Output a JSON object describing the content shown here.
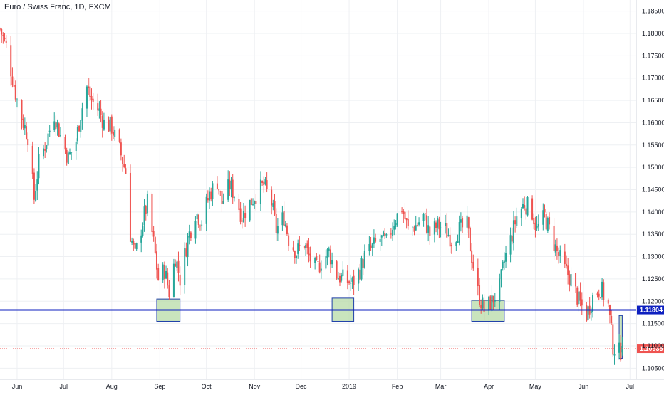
{
  "chart_data": {
    "type": "candlestick",
    "title": "Euro / Swiss Franc, 1D, FXCM",
    "x_labels": [
      "Jun",
      "Jul",
      "Aug",
      "Sep",
      "Oct",
      "Nov",
      "Dec",
      "2019",
      "Feb",
      "Mar",
      "Apr",
      "May",
      "Jun",
      "Jul"
    ],
    "y_ticks": [
      "1.18500",
      "1.18000",
      "1.17500",
      "1.17000",
      "1.16500",
      "1.16000",
      "1.15500",
      "1.15000",
      "1.14500",
      "1.14000",
      "1.13500",
      "1.13000",
      "1.12500",
      "1.12000",
      "1.11500",
      "1.11000",
      "1.10500"
    ],
    "ylim": [
      1.1025,
      1.1875
    ],
    "grid": true,
    "colors": {
      "up": "#26a69a",
      "down": "#ef5350",
      "support_line": "#0d1fbf",
      "current_price": "#ef5350",
      "zone_fill": "#b7dba7",
      "zone_border": "#1e3fa8",
      "grid": "#eef0f3"
    },
    "support_level": {
      "value": 1.11804,
      "label": "1.11804"
    },
    "current_price": {
      "value": 1.10935,
      "label": "1.10935"
    },
    "highlight_zones": [
      {
        "start": "2018-08-30",
        "end": "2018-09-14",
        "y_low": 1.1155,
        "y_high": 1.1205
      },
      {
        "start": "2018-12-21",
        "end": "2019-01-04",
        "y_low": 1.1155,
        "y_high": 1.1207
      },
      {
        "start": "2019-03-21",
        "end": "2019-04-11",
        "y_low": 1.1155,
        "y_high": 1.1202
      },
      {
        "start": "2019-06-24",
        "end": "2019-06-26",
        "y_low": 1.1072,
        "y_high": 1.1168
      }
    ],
    "closes": [
      [
        "2018-05-21",
        1.181
      ],
      [
        "2018-05-25",
        1.177
      ],
      [
        "2018-06-01",
        1.165
      ],
      [
        "2018-06-05",
        1.16
      ],
      [
        "2018-06-08",
        1.157
      ],
      [
        "2018-06-12",
        1.143
      ],
      [
        "2018-06-15",
        1.151
      ],
      [
        "2018-06-20",
        1.156
      ],
      [
        "2018-06-25",
        1.162
      ],
      [
        "2018-06-29",
        1.157
      ],
      [
        "2018-07-04",
        1.152
      ],
      [
        "2018-07-09",
        1.156
      ],
      [
        "2018-07-12",
        1.162
      ],
      [
        "2018-07-16",
        1.168
      ],
      [
        "2018-07-19",
        1.165
      ],
      [
        "2018-07-24",
        1.1625
      ],
      [
        "2018-07-27",
        1.16
      ],
      [
        "2018-08-01",
        1.159
      ],
      [
        "2018-08-06",
        1.154
      ],
      [
        "2018-08-10",
        1.149
      ],
      [
        "2018-08-13",
        1.135
      ],
      [
        "2018-08-16",
        1.13
      ],
      [
        "2018-08-21",
        1.138
      ],
      [
        "2018-08-24",
        1.142
      ],
      [
        "2018-08-28",
        1.133
      ],
      [
        "2018-08-31",
        1.125
      ],
      [
        "2018-09-04",
        1.127
      ],
      [
        "2018-09-07",
        1.122
      ],
      [
        "2018-09-11",
        1.13
      ],
      [
        "2018-09-14",
        1.125
      ],
      [
        "2018-09-19",
        1.134
      ],
      [
        "2018-09-24",
        1.14
      ],
      [
        "2018-09-28",
        1.138
      ],
      [
        "2018-10-03",
        1.144
      ],
      [
        "2018-10-08",
        1.147
      ],
      [
        "2018-10-11",
        1.142
      ],
      [
        "2018-10-16",
        1.146
      ],
      [
        "2018-10-19",
        1.144
      ],
      [
        "2018-10-24",
        1.139
      ],
      [
        "2018-10-29",
        1.142
      ],
      [
        "2018-11-02",
        1.144
      ],
      [
        "2018-11-07",
        1.146
      ],
      [
        "2018-11-12",
        1.142
      ],
      [
        "2018-11-15",
        1.136
      ],
      [
        "2018-11-20",
        1.139
      ],
      [
        "2018-11-23",
        1.134
      ],
      [
        "2018-11-28",
        1.131
      ],
      [
        "2018-12-03",
        1.133
      ],
      [
        "2018-12-06",
        1.13
      ],
      [
        "2018-12-11",
        1.127
      ],
      [
        "2018-12-14",
        1.129
      ],
      [
        "2018-12-19",
        1.131
      ],
      [
        "2018-12-24",
        1.126
      ],
      [
        "2018-12-28",
        1.125
      ],
      [
        "2019-01-03",
        1.124
      ],
      [
        "2019-01-08",
        1.127
      ],
      [
        "2019-01-11",
        1.13
      ],
      [
        "2019-01-16",
        1.132
      ],
      [
        "2019-01-21",
        1.134
      ],
      [
        "2019-01-25",
        1.133
      ],
      [
        "2019-01-30",
        1.138
      ],
      [
        "2019-02-04",
        1.141
      ],
      [
        "2019-02-08",
        1.136
      ],
      [
        "2019-02-13",
        1.137
      ],
      [
        "2019-02-18",
        1.139
      ],
      [
        "2019-02-22",
        1.135
      ],
      [
        "2019-02-27",
        1.137
      ],
      [
        "2019-03-04",
        1.136
      ],
      [
        "2019-03-08",
        1.134
      ],
      [
        "2019-03-13",
        1.136
      ],
      [
        "2019-03-18",
        1.137
      ],
      [
        "2019-03-21",
        1.13
      ],
      [
        "2019-03-25",
        1.122
      ],
      [
        "2019-03-29",
        1.118
      ],
      [
        "2019-04-03",
        1.12
      ],
      [
        "2019-04-08",
        1.123
      ],
      [
        "2019-04-11",
        1.129
      ],
      [
        "2019-04-16",
        1.135
      ],
      [
        "2019-04-19",
        1.139
      ],
      [
        "2019-04-24",
        1.142
      ],
      [
        "2019-04-29",
        1.14
      ],
      [
        "2019-05-02",
        1.136
      ],
      [
        "2019-05-07",
        1.139
      ],
      [
        "2019-05-10",
        1.136
      ],
      [
        "2019-05-15",
        1.131
      ],
      [
        "2019-05-20",
        1.127
      ],
      [
        "2019-05-24",
        1.125
      ],
      [
        "2019-05-29",
        1.12
      ],
      [
        "2019-06-03",
        1.117
      ],
      [
        "2019-06-07",
        1.121
      ],
      [
        "2019-06-12",
        1.123
      ],
      [
        "2019-06-17",
        1.119
      ],
      [
        "2019-06-20",
        1.11
      ],
      [
        "2019-06-24",
        1.1085
      ],
      [
        "2019-06-26",
        1.1093
      ]
    ]
  }
}
